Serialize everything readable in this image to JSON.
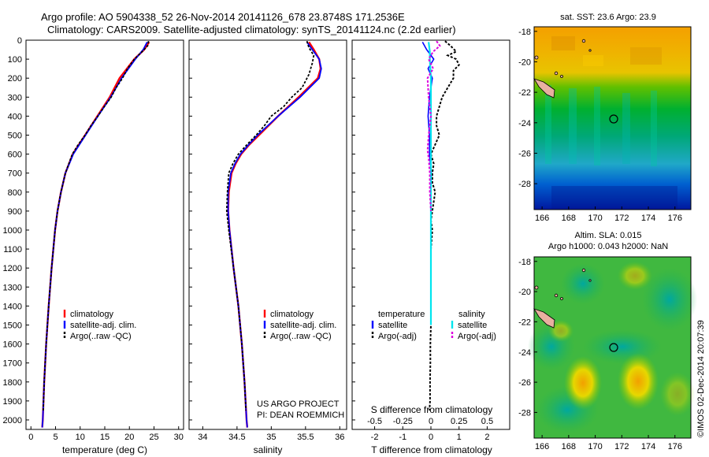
{
  "header": {
    "title_line1": "Argo profile: AO 5904338_52 26-Nov-2014 20141126_678 23.8748S 171.2536E",
    "title_line2": "Climatology: CARS2009. Satellite-adjusted climatology: synTS_20141124.nc (2.2d earlier)"
  },
  "colors": {
    "climatology": "#ff0000",
    "satellite": "#0000ff",
    "argo": "#000000",
    "salinity_satellite": "#00e5ee",
    "salinity_argo": "#dd00dd"
  },
  "chart_data": [
    {
      "type": "line",
      "title": "",
      "xlabel": "temperature (deg C)",
      "ylabel": "",
      "xlim": [
        -1,
        31
      ],
      "ylim": [
        2050,
        0
      ],
      "xticks": [
        "0",
        "5",
        "10",
        "15",
        "20",
        "25",
        "30"
      ],
      "yticks": [
        "0",
        "100",
        "200",
        "300",
        "400",
        "500",
        "600",
        "700",
        "800",
        "900",
        "1000",
        "1100",
        "1200",
        "1300",
        "1400",
        "1500",
        "1600",
        "1700",
        "1800",
        "1900",
        "2000"
      ],
      "legend": [
        "climatology",
        "satellite-adj. clim.",
        "Argo(..raw -QC)"
      ],
      "series": [
        {
          "name": "climatology",
          "depth": [
            10,
            50,
            100,
            200,
            300,
            400,
            500,
            600,
            700,
            800,
            900,
            1000,
            1200,
            1400,
            1600,
            1800,
            2000,
            2040
          ],
          "values": [
            24.0,
            23.0,
            21.0,
            18.0,
            16.0,
            13.5,
            11.0,
            8.5,
            7.0,
            6.1,
            5.4,
            4.9,
            4.2,
            3.6,
            3.1,
            2.7,
            2.4,
            2.3
          ]
        },
        {
          "name": "satellite-adj. clim.",
          "depth": [
            10,
            50,
            100,
            200,
            300,
            400,
            500,
            600,
            700,
            800,
            900,
            1000,
            1200,
            1400,
            1600,
            1800,
            2000,
            2040
          ],
          "values": [
            23.6,
            22.8,
            21.2,
            18.4,
            16.2,
            13.6,
            11.1,
            8.6,
            7.0,
            6.1,
            5.4,
            4.9,
            4.2,
            3.6,
            3.1,
            2.7,
            2.4,
            2.3
          ]
        },
        {
          "name": "Argo(..raw -QC)",
          "depth": [
            5,
            30,
            60,
            100,
            150,
            200,
            250,
            300,
            350,
            400,
            450,
            500,
            550,
            600,
            700,
            800,
            900,
            1000,
            1200,
            1400,
            1600,
            1800,
            1950
          ],
          "values": [
            23.9,
            23.7,
            22.6,
            21.0,
            19.6,
            18.6,
            17.3,
            16.3,
            14.9,
            13.6,
            12.2,
            11.0,
            9.6,
            8.4,
            7.0,
            6.1,
            5.4,
            4.9,
            4.2,
            3.6,
            3.1,
            2.7,
            2.5
          ]
        }
      ]
    },
    {
      "type": "line",
      "title": "",
      "xlabel": "salinity",
      "ylabel": "",
      "xlim": [
        33.8,
        36.1
      ],
      "ylim": [
        2050,
        0
      ],
      "xticks": [
        "34",
        "34.5",
        "35",
        "35.5",
        "36"
      ],
      "legend": [
        "climatology",
        "satellite-adj. clim.",
        "Argo(..raw -QC)"
      ],
      "annotation": [
        "US ARGO PROJECT",
        "PI: DEAN ROEMMICH"
      ],
      "series": [
        {
          "name": "climatology",
          "depth": [
            10,
            50,
            100,
            150,
            200,
            300,
            400,
            500,
            550,
            600,
            650,
            700,
            800,
            900,
            1000,
            1200,
            1400,
            1600,
            1800,
            2000,
            2040
          ],
          "values": [
            35.55,
            35.62,
            35.7,
            35.72,
            35.68,
            35.4,
            35.1,
            34.82,
            34.68,
            34.56,
            34.48,
            34.42,
            34.38,
            34.37,
            34.39,
            34.45,
            34.52,
            34.57,
            34.61,
            34.64,
            34.65
          ]
        },
        {
          "name": "satellite-adj. clim.",
          "depth": [
            10,
            50,
            100,
            150,
            200,
            300,
            400,
            500,
            550,
            600,
            650,
            700,
            800,
            900,
            1000,
            1200,
            1400,
            1600,
            1800,
            2000,
            2040
          ],
          "values": [
            35.52,
            35.6,
            35.7,
            35.73,
            35.7,
            35.42,
            35.1,
            34.8,
            34.67,
            34.55,
            34.47,
            34.41,
            34.37,
            34.37,
            34.39,
            34.45,
            34.52,
            34.57,
            34.61,
            34.64,
            34.65
          ]
        },
        {
          "name": "Argo(..raw -QC)",
          "depth": [
            5,
            40,
            80,
            120,
            180,
            250,
            300,
            350,
            400,
            450,
            500,
            560,
            600,
            650,
            700,
            800,
            900,
            1000,
            1200,
            1400,
            1600,
            1800,
            1950
          ],
          "values": [
            35.52,
            35.55,
            35.62,
            35.6,
            35.55,
            35.45,
            35.3,
            35.18,
            35.0,
            34.9,
            34.78,
            34.62,
            34.52,
            34.44,
            34.38,
            34.36,
            34.35,
            34.38,
            34.45,
            34.52,
            34.57,
            34.61,
            34.63
          ]
        }
      ]
    },
    {
      "type": "line",
      "title": "",
      "xlabel": "T difference from climatology",
      "xlabel_top": "S difference from climatology",
      "xlim": [
        -2.8,
        2.8
      ],
      "ylim": [
        2050,
        0
      ],
      "xticks": [
        "-2",
        "-1",
        "0",
        "1",
        "2"
      ],
      "xticks_top": [
        "-0.5",
        "-0.25",
        "0",
        "0.25",
        "0.5"
      ],
      "legend_headers": [
        "temperature",
        "salinity"
      ],
      "legend": [
        "satellite",
        "Argo(-adj)",
        "satellite",
        "Argo(-adj)"
      ],
      "series": [
        {
          "name": "temperature satellite",
          "depth": [
            10,
            50,
            100,
            150,
            200,
            300,
            400,
            500,
            600,
            700,
            800,
            1000,
            1300,
            1500
          ],
          "values": [
            -0.3,
            -0.15,
            0.1,
            -0.1,
            0.05,
            -0.05,
            -0.1,
            -0.05,
            -0.05,
            0.02,
            0.0,
            0.0,
            0.0,
            0.0
          ]
        },
        {
          "name": "temperature Argo(-adj)",
          "depth": [
            5,
            30,
            60,
            80,
            100,
            130,
            160,
            200,
            250,
            300,
            350,
            400,
            450,
            500,
            550,
            600,
            650,
            700,
            750,
            800,
            850,
            900,
            950,
            1000,
            1100,
            1200,
            1300,
            1400,
            1500,
            1600,
            1700,
            1800,
            1900,
            1950
          ],
          "values": [
            0.5,
            0.7,
            0.9,
            0.6,
            0.9,
            1.0,
            0.8,
            0.8,
            0.6,
            0.4,
            0.3,
            0.2,
            0.2,
            0.3,
            0.15,
            0.0,
            0.1,
            0.05,
            0.05,
            0.15,
            0.1,
            0.05,
            0.0,
            0.05,
            0.0,
            0.0,
            0.0,
            0.0,
            0.0,
            -0.02,
            -0.02,
            -0.03,
            -0.03,
            -0.05
          ]
        },
        {
          "name": "salinity satellite",
          "depth": [
            10,
            60,
            100,
            200,
            300,
            500,
            700,
            1000,
            1300,
            1500
          ],
          "values": [
            -0.02,
            -0.01,
            -0.01,
            0.0,
            0.0,
            0.0,
            0.0,
            0.0,
            0.0,
            0.0
          ]
        },
        {
          "name": "salinity Argo(-adj)",
          "depth": [
            5,
            30,
            60,
            100,
            150,
            200,
            300,
            400,
            500,
            580,
            620,
            700,
            800,
            900
          ],
          "values": [
            0.05,
            0.08,
            0.02,
            -0.02,
            0.02,
            -0.03,
            -0.02,
            0.0,
            -0.02,
            -0.03,
            -0.02,
            -0.01,
            -0.01,
            0.0
          ]
        }
      ]
    }
  ],
  "maps": {
    "sst": {
      "title": "sat. SST: 23.6 Argo: 23.9",
      "xticks": [
        "166",
        "168",
        "170",
        "172",
        "174",
        "176"
      ],
      "yticks": [
        "-18",
        "-20",
        "-22",
        "-24",
        "-26",
        "-28"
      ]
    },
    "sla": {
      "title_line1": "Altim. SLA: 0.015",
      "title_line2": "Argo h1000: 0.043 h2000: NaN",
      "xticks": [
        "166",
        "168",
        "170",
        "172",
        "174",
        "176"
      ],
      "yticks": [
        "-18",
        "-20",
        "-22",
        "-24",
        "-26",
        "-28"
      ]
    }
  },
  "footer": {
    "credit": "©IMOS 02-Dec-2014 20:07:39"
  }
}
